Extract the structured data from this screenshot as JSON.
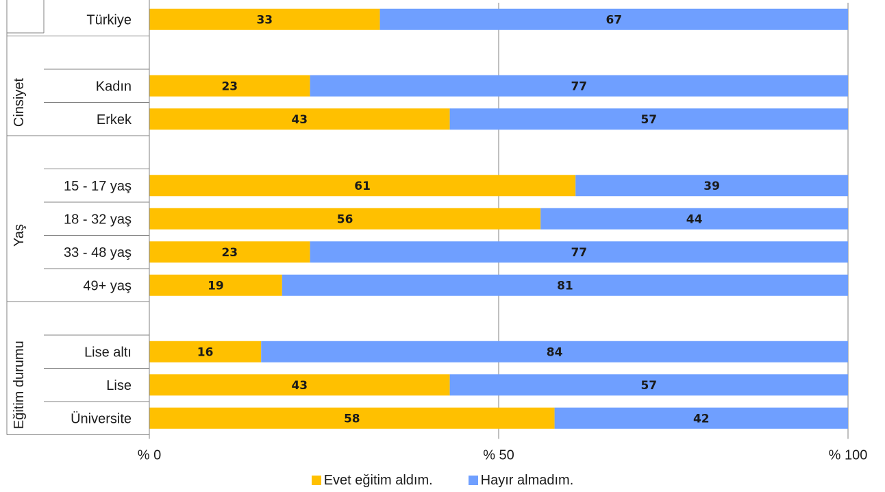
{
  "chart_data": {
    "type": "bar",
    "orientation": "horizontal",
    "stacked": true,
    "title": "",
    "xlabel": "",
    "ylabel": "",
    "xlim": [
      0,
      100
    ],
    "x_ticks": [
      "% 0",
      "% 50",
      "% 100"
    ],
    "grid": "vertical lines at tick positions",
    "legend_position": "bottom",
    "categories": [
      "Türkiye",
      "",
      "Kadın",
      "Erkek",
      "",
      "15 - 17 yaş",
      "18 - 32 yaş",
      "33 - 48 yaş",
      "49+ yaş",
      "",
      "Lise altı",
      "Lise",
      "Üniversite"
    ],
    "groups": [
      {
        "name": "Cinsiyet",
        "categories": [
          "Kadın",
          "Erkek"
        ]
      },
      {
        "name": "Yaş",
        "categories": [
          "15 - 17 yaş",
          "18 - 32 yaş",
          "33 - 48 yaş",
          "49+ yaş"
        ]
      },
      {
        "name": "Eğitim durumu",
        "categories": [
          "Lise altı",
          "Lise",
          "Üniversite"
        ]
      }
    ],
    "series": [
      {
        "name": "Evet eğitim aldım.",
        "color": "#ffc000",
        "values": [
          33,
          null,
          23,
          43,
          null,
          61,
          56,
          23,
          19,
          null,
          16,
          43,
          58
        ]
      },
      {
        "name": "Hayır almadım.",
        "color": "#6f9fff",
        "values": [
          67,
          null,
          77,
          57,
          null,
          39,
          44,
          77,
          81,
          null,
          84,
          57,
          42
        ]
      }
    ]
  }
}
